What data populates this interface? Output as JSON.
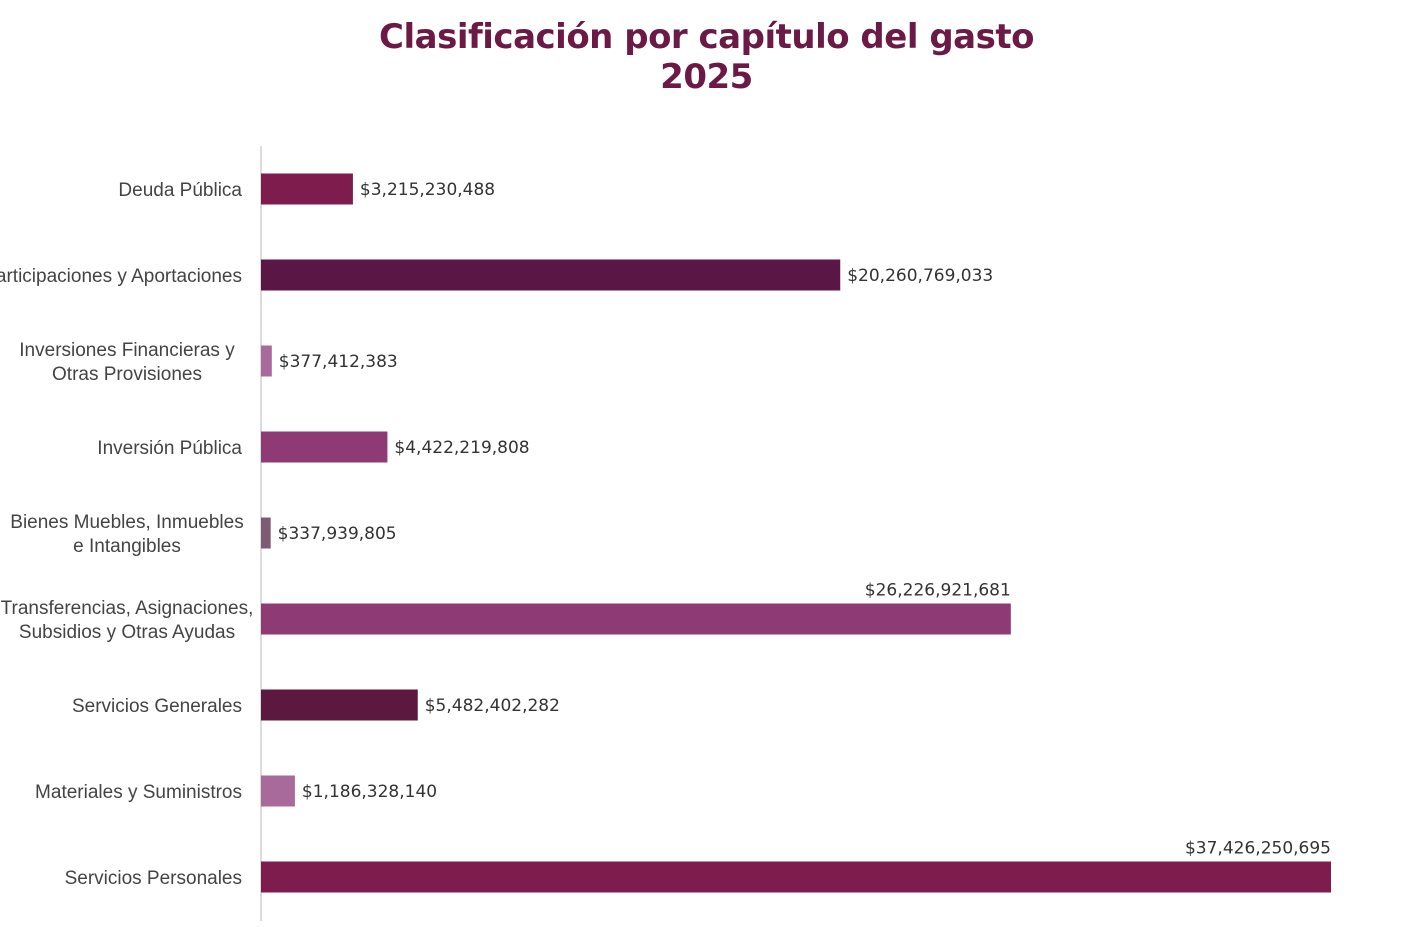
{
  "title_line1": "Clasificación por capítulo del gasto",
  "title_line2": "2025",
  "chart_data": {
    "type": "bar",
    "orientation": "horizontal",
    "categories": [
      [
        "Deuda Pública"
      ],
      [
        "Participaciones y Aportaciones"
      ],
      [
        "Inversiones Financieras y",
        "Otras Provisiones"
      ],
      [
        "Inversión Pública"
      ],
      [
        "Bienes Muebles, Inmuebles",
        "e Intangibles"
      ],
      [
        "Transferencias, Asignaciones,",
        "Subsidios y Otras Ayudas"
      ],
      [
        "Servicios Generales"
      ],
      [
        "Materiales y Suministros"
      ],
      [
        "Servicios Personales"
      ]
    ],
    "values": [
      3215230488,
      20260769033,
      377412383,
      4422219808,
      337939805,
      26226921681,
      5482402282,
      1186328140,
      37426250695
    ],
    "labels": [
      "$3,215,230,488",
      "$20,260,769,033",
      "$377,412,383",
      "$4,422,219,808",
      "$337,939,805",
      "$26,226,921,681",
      "$5,482,402,282",
      "$1,186,328,140",
      "$37,426,250,695"
    ],
    "label_above": [
      false,
      false,
      false,
      false,
      false,
      true,
      false,
      false,
      true
    ],
    "colors": [
      "#7d1c4d",
      "#5a1746",
      "#a86a9a",
      "#8e3b75",
      "#7c5b73",
      "#8e3b75",
      "#5c183e",
      "#a86a9a",
      "#7d1c4d"
    ],
    "xlim": [
      0,
      37426250695
    ],
    "grid": false
  }
}
